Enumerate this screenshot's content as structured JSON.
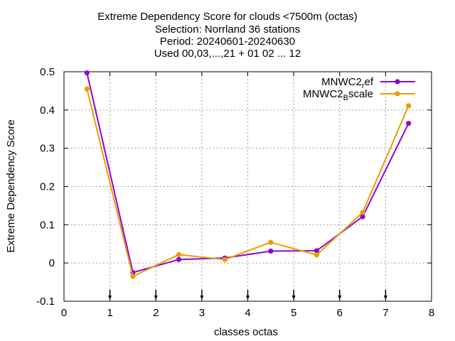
{
  "chart_data": {
    "type": "line",
    "title_lines": [
      "Extreme Dependency Score  for clouds <7500m (octas)",
      "Selection: Norrland     36 stations",
      "Period: 20240601-20240630",
      "Used 00,03,...,21 + 01 02 ... 12"
    ],
    "xlabel": "classes octas",
    "ylabel": "Extreme Dependency Score",
    "xlim": [
      0,
      8
    ],
    "ylim": [
      -0.1,
      0.5
    ],
    "x_ticks": [
      0,
      1,
      2,
      3,
      4,
      5,
      6,
      7,
      8
    ],
    "x_tick_labels": [
      "0",
      "1",
      "2",
      "3",
      "4",
      "5",
      "6",
      "7",
      "8"
    ],
    "y_ticks": [
      -0.1,
      0,
      0.1,
      0.2,
      0.3,
      0.4,
      0.5
    ],
    "y_tick_labels": [
      "-0.1",
      "0",
      "0.1",
      "0.2",
      "0.3",
      "0.4",
      "0.5"
    ],
    "grid": true,
    "legend_position": "top-right",
    "arrow_markers_x": [
      1,
      2,
      3,
      4,
      5,
      6,
      7
    ],
    "series": [
      {
        "name_main": "MNWC2",
        "name_sub": "r",
        "name_tail": "ef",
        "color": "#9400d3",
        "x": [
          0.5,
          1.5,
          2.5,
          3.5,
          4.5,
          5.5,
          6.5,
          7.5
        ],
        "values": [
          0.497,
          -0.025,
          0.009,
          0.013,
          0.031,
          0.032,
          0.121,
          0.365
        ]
      },
      {
        "name_main": "MNWC2",
        "name_sub": "B",
        "name_tail": "scale",
        "color": "#e69f00",
        "x": [
          0.5,
          1.5,
          2.5,
          3.5,
          4.5,
          5.5,
          6.5,
          7.5
        ],
        "values": [
          0.455,
          -0.035,
          0.022,
          0.009,
          0.054,
          0.021,
          0.132,
          0.411
        ]
      }
    ]
  }
}
